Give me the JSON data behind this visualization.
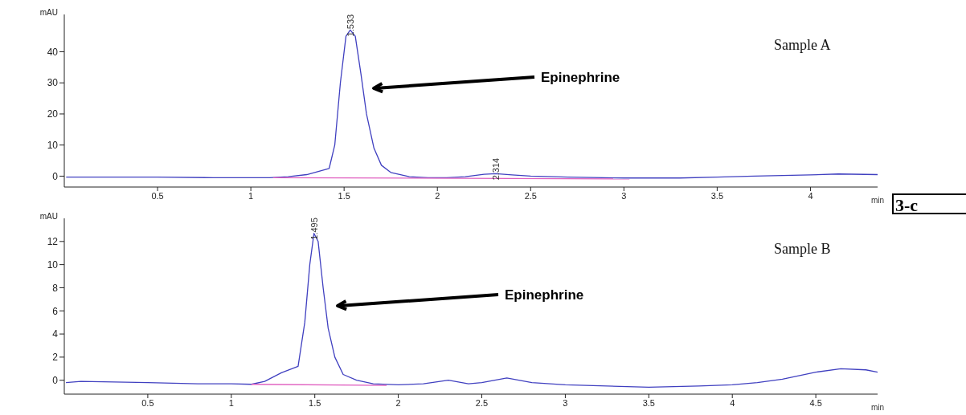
{
  "chart_data": [
    {
      "type": "line",
      "xlabel": "min",
      "ylabel": "mAU",
      "xlim": [
        0,
        4.36
      ],
      "ylim": [
        -3.5,
        52
      ],
      "xticks": [
        0.5,
        1,
        1.5,
        2,
        2.5,
        3,
        3.5,
        4
      ],
      "yticks": [
        0,
        10,
        20,
        30,
        40
      ],
      "grid": false,
      "legend": false,
      "series": [
        {
          "color": "#4040c0",
          "x": [
            0.01,
            0.5,
            0.8,
            1.1,
            1.2,
            1.3,
            1.42,
            1.45,
            1.48,
            1.51,
            1.533,
            1.56,
            1.59,
            1.62,
            1.66,
            1.7,
            1.75,
            1.85,
            1.95,
            2.05,
            2.15,
            2.25,
            2.314,
            2.4,
            2.5,
            2.7,
            3.0,
            3.3,
            3.5,
            3.7,
            4.0,
            4.15,
            4.36
          ],
          "values": [
            -0.3,
            -0.3,
            -0.5,
            -0.5,
            -0.2,
            0.5,
            2.5,
            10,
            30,
            45,
            47,
            45,
            33,
            20,
            9,
            3.5,
            1.2,
            -0.2,
            -0.5,
            -0.5,
            -0.2,
            0.6,
            0.8,
            0.4,
            0,
            -0.3,
            -0.6,
            -0.6,
            -0.3,
            0,
            0.4,
            0.7,
            0.5
          ]
        },
        {
          "type": "line",
          "color": "#e060c0",
          "x": [
            1.12,
            3.03
          ],
          "values": [
            -0.5,
            -0.9
          ]
        }
      ],
      "annotations": [
        {
          "text": "1.533",
          "x": 1.533,
          "y": 47
        },
        {
          "text": "2.314",
          "x": 2.314,
          "y": 0.8
        },
        "Epinephrine",
        "Sample A",
        "3-c"
      ]
    },
    {
      "type": "line",
      "xlabel": "min",
      "ylabel": "mAU",
      "xlim": [
        0,
        4.87
      ],
      "ylim": [
        -1.2,
        14
      ],
      "xticks": [
        0.5,
        1,
        1.5,
        2,
        2.5,
        3,
        3.5,
        4,
        4.5
      ],
      "yticks": [
        0,
        2,
        4,
        6,
        8,
        10,
        12
      ],
      "grid": false,
      "legend": false,
      "series": [
        {
          "color": "#4040c0",
          "x": [
            0.01,
            0.1,
            0.5,
            0.8,
            1.0,
            1.12,
            1.2,
            1.3,
            1.4,
            1.44,
            1.47,
            1.495,
            1.52,
            1.55,
            1.58,
            1.62,
            1.67,
            1.75,
            1.85,
            2.0,
            2.15,
            2.3,
            2.42,
            2.5,
            2.65,
            2.8,
            3.0,
            3.5,
            3.8,
            4.0,
            4.15,
            4.3,
            4.5,
            4.65,
            4.8,
            4.87
          ],
          "values": [
            -0.2,
            -0.1,
            -0.2,
            -0.3,
            -0.3,
            -0.35,
            -0.1,
            0.65,
            1.2,
            5,
            10,
            12.7,
            12,
            8,
            4.5,
            2,
            0.5,
            0,
            -0.3,
            -0.4,
            -0.3,
            0,
            -0.3,
            -0.2,
            0.2,
            -0.2,
            -0.4,
            -0.6,
            -0.5,
            -0.4,
            -0.2,
            0.1,
            0.7,
            1.0,
            0.9,
            0.7
          ]
        },
        {
          "type": "line",
          "color": "#e060c0",
          "x": [
            1.12,
            1.93
          ],
          "values": [
            -0.35,
            -0.45
          ]
        }
      ],
      "annotations": [
        {
          "text": "1.495",
          "x": 1.495,
          "y": 12.7
        },
        "Epinephrine",
        "Sample B"
      ]
    }
  ]
}
